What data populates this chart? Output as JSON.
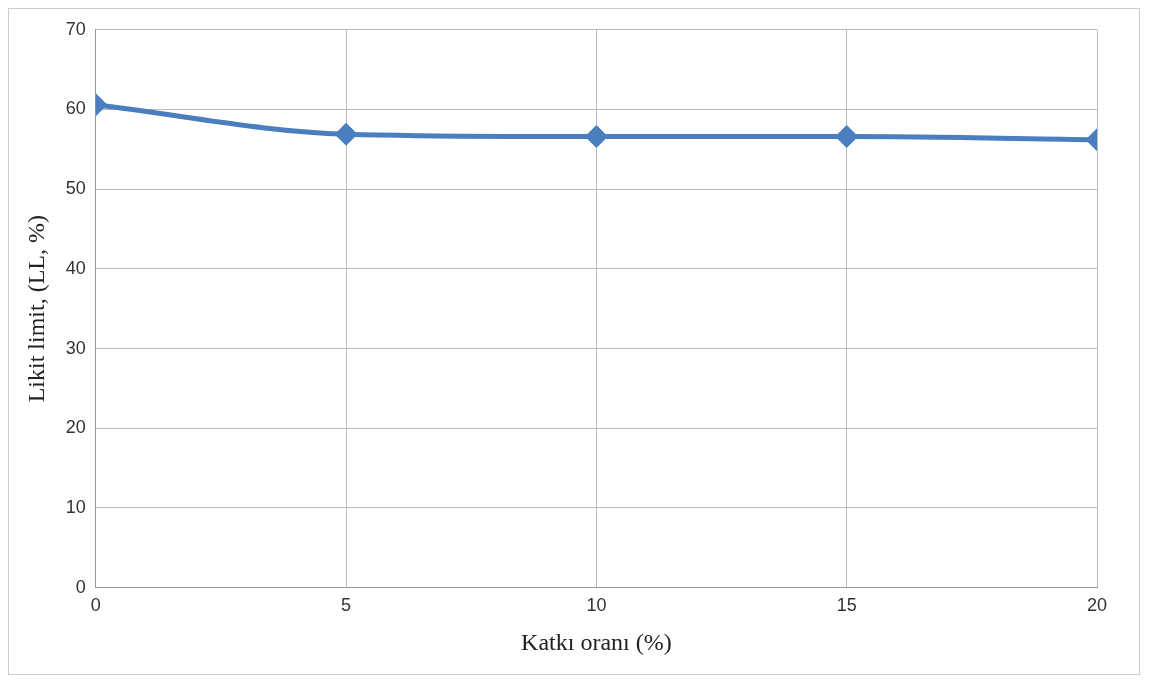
{
  "chart_data": {
    "type": "line",
    "xlabel": "Katkı oranı (%)",
    "ylabel": "Likit limit, (LL, %)",
    "x": [
      0,
      5,
      10,
      15,
      20
    ],
    "series": [
      {
        "color": "#4a7ebf",
        "values": [
          60.6,
          56.9,
          56.6,
          56.6,
          56.2
        ]
      }
    ],
    "xlim": [
      0,
      20
    ],
    "xticks": [
      0,
      5,
      10,
      15,
      20
    ],
    "ylim": [
      0,
      70
    ],
    "yticks": [
      0,
      10,
      20,
      30,
      40,
      50,
      60,
      70
    ],
    "grid": true,
    "legend": false,
    "marker": "diamond",
    "line_style": "solid"
  }
}
